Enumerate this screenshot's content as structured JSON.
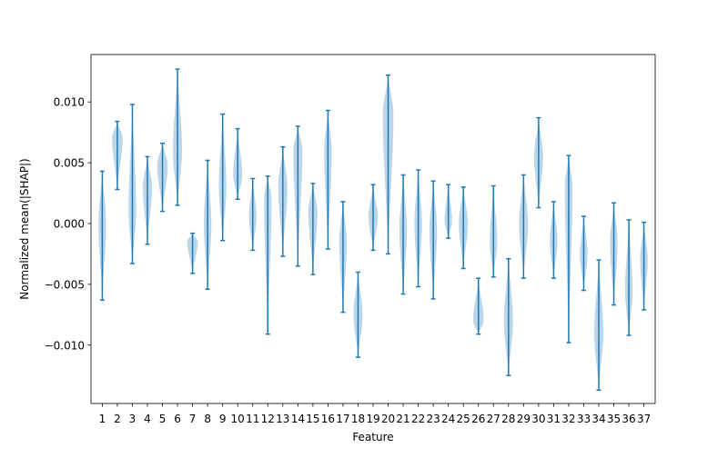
{
  "chart_data": {
    "type": "violin",
    "title": "",
    "xlabel": "Feature",
    "ylabel": "Normalized mean(|SHAP|)",
    "ylim": [
      -0.0148,
      0.0139
    ],
    "yticks": [
      -0.01,
      -0.005,
      0.0,
      0.005,
      0.01
    ],
    "ytick_labels": [
      "−0.010",
      "−0.005",
      "0.000",
      "0.005",
      "0.010"
    ],
    "grid": false,
    "legend": "none",
    "colors": {
      "line": "#1f77b4",
      "fill": "#1f77b4"
    },
    "categories": [
      "1",
      "2",
      "3",
      "4",
      "5",
      "6",
      "7",
      "8",
      "9",
      "10",
      "11",
      "12",
      "13",
      "14",
      "15",
      "16",
      "17",
      "18",
      "19",
      "20",
      "21",
      "22",
      "23",
      "24",
      "25",
      "26",
      "27",
      "28",
      "29",
      "30",
      "31",
      "32",
      "33",
      "34",
      "35",
      "36",
      "37"
    ],
    "violins": [
      {
        "feature": "1",
        "min": -0.0063,
        "max": 0.0043,
        "mode": 0.0,
        "width": 0.25
      },
      {
        "feature": "2",
        "min": 0.0028,
        "max": 0.0084,
        "mode": 0.007,
        "width": 0.35
      },
      {
        "feature": "3",
        "min": -0.0033,
        "max": 0.0098,
        "mode": 0.001,
        "width": 0.25
      },
      {
        "feature": "4",
        "min": -0.0017,
        "max": 0.0055,
        "mode": 0.003,
        "width": 0.3
      },
      {
        "feature": "5",
        "min": 0.001,
        "max": 0.0066,
        "mode": 0.0048,
        "width": 0.35
      },
      {
        "feature": "6",
        "min": 0.0015,
        "max": 0.0127,
        "mode": 0.006,
        "width": 0.3
      },
      {
        "feature": "7",
        "min": -0.0041,
        "max": -0.0008,
        "mode": -0.0015,
        "width": 0.35
      },
      {
        "feature": "8",
        "min": -0.0054,
        "max": 0.0052,
        "mode": 0.0,
        "width": 0.25
      },
      {
        "feature": "9",
        "min": -0.0014,
        "max": 0.009,
        "mode": 0.003,
        "width": 0.25
      },
      {
        "feature": "10",
        "min": 0.002,
        "max": 0.0078,
        "mode": 0.004,
        "width": 0.3
      },
      {
        "feature": "11",
        "min": -0.0022,
        "max": 0.0037,
        "mode": 0.0005,
        "width": 0.25
      },
      {
        "feature": "12",
        "min": -0.0091,
        "max": 0.0039,
        "mode": 0.002,
        "width": 0.25
      },
      {
        "feature": "13",
        "min": -0.0027,
        "max": 0.0063,
        "mode": 0.003,
        "width": 0.3
      },
      {
        "feature": "14",
        "min": -0.0035,
        "max": 0.008,
        "mode": 0.006,
        "width": 0.3
      },
      {
        "feature": "15",
        "min": -0.0042,
        "max": 0.0033,
        "mode": 0.001,
        "width": 0.3
      },
      {
        "feature": "16",
        "min": -0.0021,
        "max": 0.0093,
        "mode": 0.006,
        "width": 0.25
      },
      {
        "feature": "17",
        "min": -0.0073,
        "max": 0.0018,
        "mode": -0.0015,
        "width": 0.25
      },
      {
        "feature": "18",
        "min": -0.011,
        "max": -0.004,
        "mode": -0.0075,
        "width": 0.3
      },
      {
        "feature": "19",
        "min": -0.0022,
        "max": 0.0032,
        "mode": 0.0005,
        "width": 0.3
      },
      {
        "feature": "20",
        "min": -0.0025,
        "max": 0.0122,
        "mode": 0.009,
        "width": 0.35
      },
      {
        "feature": "21",
        "min": -0.0058,
        "max": 0.004,
        "mode": -0.0005,
        "width": 0.25
      },
      {
        "feature": "22",
        "min": -0.0052,
        "max": 0.0044,
        "mode": 0.0,
        "width": 0.25
      },
      {
        "feature": "23",
        "min": -0.0062,
        "max": 0.0035,
        "mode": -0.0005,
        "width": 0.25
      },
      {
        "feature": "24",
        "min": -0.0012,
        "max": 0.0032,
        "mode": 0.0002,
        "width": 0.25
      },
      {
        "feature": "25",
        "min": -0.0037,
        "max": 0.003,
        "mode": 0.0,
        "width": 0.3
      },
      {
        "feature": "26",
        "min": -0.0091,
        "max": -0.0045,
        "mode": -0.008,
        "width": 0.35
      },
      {
        "feature": "27",
        "min": -0.0044,
        "max": 0.0031,
        "mode": -0.0015,
        "width": 0.25
      },
      {
        "feature": "28",
        "min": -0.0125,
        "max": -0.0029,
        "mode": -0.008,
        "width": 0.3
      },
      {
        "feature": "29",
        "min": -0.0045,
        "max": 0.004,
        "mode": 0.0,
        "width": 0.3
      },
      {
        "feature": "30",
        "min": 0.0013,
        "max": 0.0087,
        "mode": 0.0055,
        "width": 0.3
      },
      {
        "feature": "31",
        "min": -0.0045,
        "max": 0.0018,
        "mode": -0.0015,
        "width": 0.25
      },
      {
        "feature": "32",
        "min": -0.0098,
        "max": 0.0056,
        "mode": 0.003,
        "width": 0.25
      },
      {
        "feature": "33",
        "min": -0.0055,
        "max": 0.0006,
        "mode": -0.0025,
        "width": 0.25
      },
      {
        "feature": "34",
        "min": -0.0137,
        "max": -0.003,
        "mode": -0.009,
        "width": 0.3
      },
      {
        "feature": "35",
        "min": -0.0067,
        "max": 0.0017,
        "mode": -0.0015,
        "width": 0.25
      },
      {
        "feature": "36",
        "min": -0.0092,
        "max": 0.0003,
        "mode": -0.0055,
        "width": 0.25
      },
      {
        "feature": "37",
        "min": -0.0071,
        "max": 0.0001,
        "mode": -0.003,
        "width": 0.25
      }
    ]
  }
}
